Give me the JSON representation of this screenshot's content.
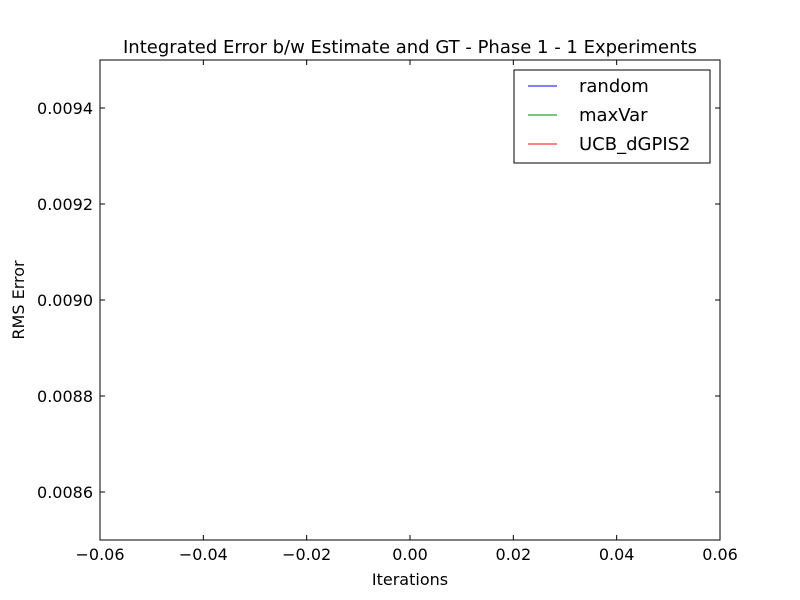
{
  "chart_data": {
    "type": "line",
    "title": "Integrated Error b/w Estimate and GT - Phase 1 - 1 Experiments",
    "xlabel": "Iterations",
    "ylabel": "RMS Error",
    "xlim": [
      -0.06,
      0.06
    ],
    "ylim": [
      0.0085,
      0.0095
    ],
    "x_ticks": [
      -0.06,
      -0.04,
      -0.02,
      0.0,
      0.02,
      0.04,
      0.06
    ],
    "x_tick_labels": [
      "−0.06",
      "−0.04",
      "−0.02",
      "0.00",
      "0.02",
      "0.04",
      "0.06"
    ],
    "y_ticks": [
      0.0086,
      0.0088,
      0.009,
      0.0092,
      0.0094
    ],
    "y_tick_labels": [
      "0.0086",
      "0.0088",
      "0.0090",
      "0.0092",
      "0.0094"
    ],
    "grid": false,
    "legend_position": "top-right",
    "series": [
      {
        "name": "random",
        "color": "#0000ff",
        "x": [],
        "y": []
      },
      {
        "name": "maxVar",
        "color": "#008000",
        "x": [],
        "y": []
      },
      {
        "name": "UCB_dGPIS2",
        "color": "#ff0000",
        "x": [],
        "y": []
      }
    ]
  }
}
